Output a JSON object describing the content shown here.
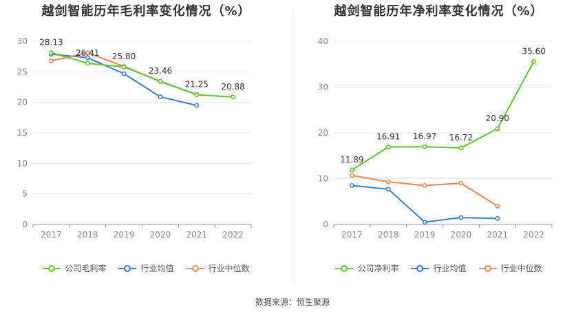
{
  "source_text": "数据来源：恒生聚源",
  "colors": {
    "company": "#5cc42c",
    "industry_avg": "#3a78d8",
    "industry_median": "#ee8654",
    "grid": "#e8e8e8",
    "axis": "#888888"
  },
  "chart_data": [
    {
      "type": "line",
      "title": "越剑智能历年毛利率变化情况（%）",
      "categories": [
        "2017",
        "2018",
        "2019",
        "2020",
        "2021",
        "2022"
      ],
      "ylim": [
        0,
        30
      ],
      "yticks": [
        0,
        5,
        10,
        15,
        20,
        25,
        30
      ],
      "grid": true,
      "legend_position": "bottom",
      "series": [
        {
          "name": "公司毛利率",
          "key": "company",
          "values": [
            28.13,
            26.41,
            25.8,
            23.46,
            21.25,
            20.88
          ],
          "labels": [
            "28.13",
            "26.41",
            "25.80",
            "23.46",
            "21.25",
            "20.88"
          ]
        },
        {
          "name": "行业均值",
          "key": "industry_avg",
          "values": [
            27.9,
            27.3,
            24.7,
            20.9,
            19.5,
            null
          ]
        },
        {
          "name": "行业中位数",
          "key": "industry_median",
          "values": [
            26.8,
            28.1,
            25.9,
            23.4,
            21.3,
            null
          ]
        }
      ]
    },
    {
      "type": "line",
      "title": "越剑智能历年净利率变化情况（%）",
      "categories": [
        "2017",
        "2018",
        "2019",
        "2020",
        "2021",
        "2022"
      ],
      "ylim": [
        0,
        40
      ],
      "yticks": [
        0,
        10,
        20,
        30,
        40
      ],
      "grid": true,
      "legend_position": "bottom",
      "series": [
        {
          "name": "公司净利率",
          "key": "company",
          "values": [
            11.89,
            16.91,
            16.97,
            16.72,
            20.9,
            35.6
          ],
          "labels": [
            "11.89",
            "16.91",
            "16.97",
            "16.72",
            "20.90",
            "35.60"
          ]
        },
        {
          "name": "行业均值",
          "key": "industry_avg",
          "values": [
            8.5,
            7.7,
            0.5,
            1.5,
            1.3,
            null
          ]
        },
        {
          "name": "行业中位数",
          "key": "industry_median",
          "values": [
            10.7,
            9.3,
            8.5,
            9.0,
            4.0,
            null
          ]
        }
      ]
    }
  ]
}
